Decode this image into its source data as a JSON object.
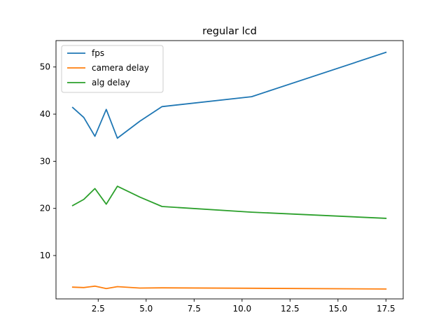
{
  "chart_data": {
    "type": "line",
    "title": "regular lcd",
    "xlabel": "",
    "ylabel": "",
    "xlim": [
      0.3,
      18.4
    ],
    "ylim": [
      0.8,
      55.6
    ],
    "xticks": [
      2.5,
      5.0,
      7.5,
      10.0,
      12.5,
      15.0,
      17.5
    ],
    "xtick_labels": [
      "2.5",
      "5.0",
      "7.5",
      "10.0",
      "12.5",
      "15.0",
      "17.5"
    ],
    "yticks": [
      10,
      20,
      30,
      40,
      50
    ],
    "ytick_labels": [
      "10",
      "20",
      "30",
      "40",
      "50"
    ],
    "grid": false,
    "legend_position": "top-left",
    "x": [
      1.17,
      1.75,
      2.33,
      2.92,
      3.5,
      4.67,
      5.83,
      10.5,
      17.5
    ],
    "series": [
      {
        "name": "fps",
        "color": "#1f77b4",
        "values": [
          41.4,
          39.3,
          35.3,
          41.0,
          34.9,
          38.5,
          41.6,
          43.7,
          53.1
        ]
      },
      {
        "name": "camera delay",
        "color": "#ff7f0e",
        "values": [
          3.3,
          3.2,
          3.5,
          3.0,
          3.4,
          3.1,
          3.15,
          3.05,
          2.9
        ]
      },
      {
        "name": "alg delay",
        "color": "#2ca02c",
        "values": [
          20.6,
          21.9,
          24.2,
          20.9,
          24.7,
          22.4,
          20.4,
          19.2,
          17.9
        ]
      }
    ]
  }
}
